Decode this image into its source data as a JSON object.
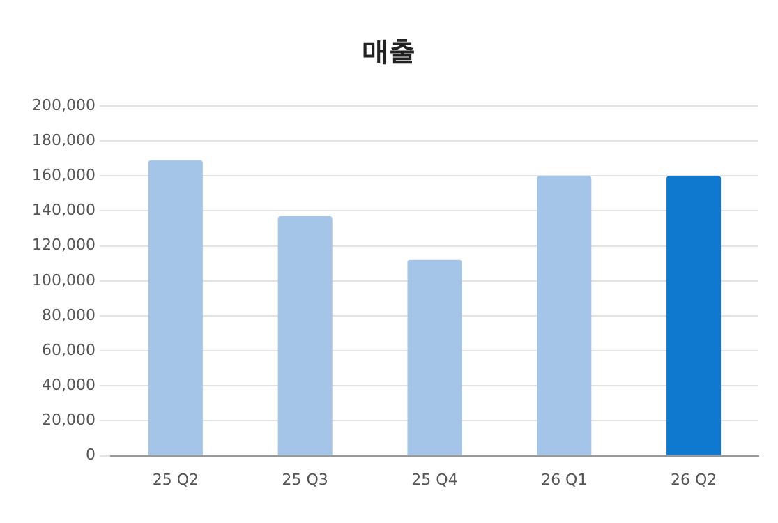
{
  "chart_data": {
    "type": "bar",
    "title": "매출",
    "categories": [
      "25 Q2",
      "25 Q3",
      "25 Q4",
      "26 Q1",
      "26 Q2"
    ],
    "values": [
      169000,
      137000,
      112000,
      160000,
      160000
    ],
    "colors": [
      "#a4c5e8",
      "#a4c5e8",
      "#a4c5e8",
      "#a4c5e8",
      "#0e79cf"
    ],
    "ylim": [
      0,
      200000
    ],
    "yticks": [
      0,
      {
        "value": 20000,
        "label": "20,000"
      },
      {
        "value": 40000,
        "label": "40,000"
      },
      {
        "value": 60000,
        "label": "60,000"
      },
      {
        "value": 80000,
        "label": "80,000"
      },
      {
        "value": 100000,
        "label": "100,000"
      },
      {
        "value": 120000,
        "label": "120,000"
      },
      {
        "value": 140000,
        "label": "140,000"
      },
      {
        "value": 160000,
        "label": "160,000"
      },
      {
        "value": 180000,
        "label": "180,000"
      },
      {
        "value": 200000,
        "label": "200,000"
      }
    ],
    "grid": "y",
    "legend": false
  }
}
